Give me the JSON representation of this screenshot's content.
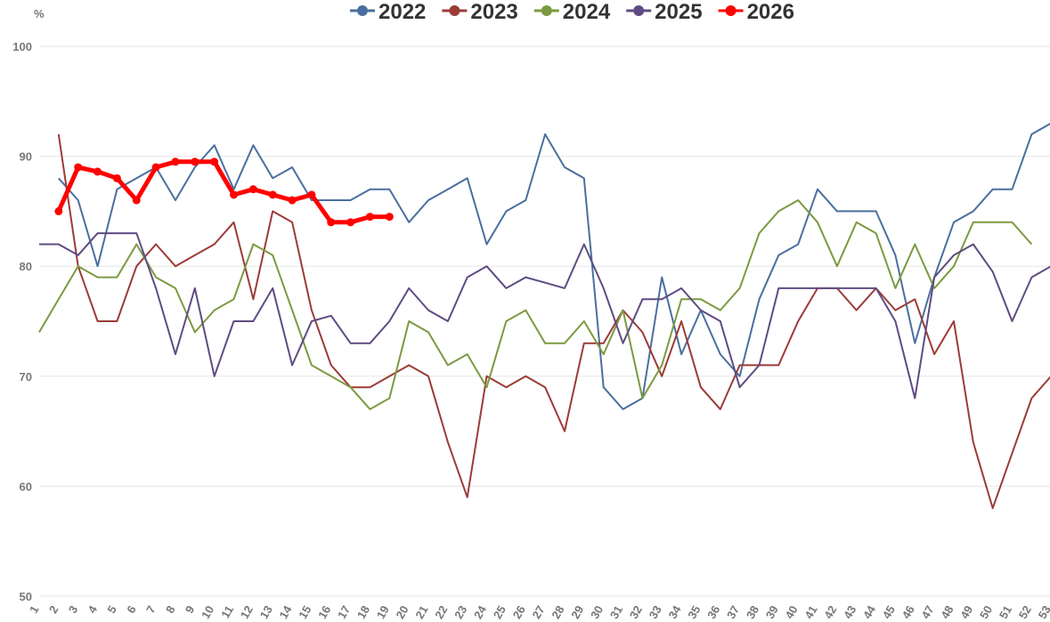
{
  "chart_data": {
    "type": "line",
    "y_unit": "%",
    "categories": [
      "1",
      "2",
      "3",
      "4",
      "5",
      "6",
      "7",
      "8",
      "9",
      "10",
      "11",
      "12",
      "13",
      "14",
      "15",
      "16",
      "17",
      "18",
      "19",
      "20",
      "21",
      "22",
      "23",
      "24",
      "25",
      "26",
      "27",
      "28",
      "29",
      "30",
      "31",
      "32",
      "33",
      "34",
      "35",
      "36",
      "37",
      "38",
      "39",
      "40",
      "41",
      "42",
      "43",
      "44",
      "45",
      "46",
      "47",
      "48",
      "49",
      "50",
      "51",
      "52",
      "53"
    ],
    "ylim": [
      50,
      100
    ],
    "yticks": [
      50,
      60,
      70,
      80,
      90,
      100
    ],
    "grid": true,
    "legend": "top",
    "series": [
      {
        "name": "2022",
        "color": "#4a6f9e",
        "values": [
          null,
          88,
          86,
          80,
          87,
          88,
          89,
          86,
          89,
          91,
          87,
          91,
          88,
          89,
          86,
          86,
          86,
          87,
          87,
          84,
          86,
          87,
          88,
          82,
          85,
          86,
          92,
          89,
          88,
          69,
          67,
          68,
          79,
          72,
          76,
          72,
          70,
          77,
          81,
          82,
          87,
          85,
          85,
          85,
          81,
          73,
          79,
          84,
          85,
          87,
          87,
          92,
          93
        ]
      },
      {
        "name": "2023",
        "color": "#9c3b37",
        "values": [
          null,
          92,
          80,
          75,
          75,
          80,
          82,
          80,
          81,
          82,
          84,
          77,
          85,
          84,
          76,
          71,
          69,
          69,
          70,
          71,
          70,
          64,
          59,
          70,
          69,
          70,
          69,
          65,
          73,
          73,
          76,
          74,
          70,
          75,
          69,
          67,
          71,
          71,
          71,
          75,
          78,
          78,
          76,
          78,
          76,
          77,
          72,
          75,
          64,
          58,
          63,
          68,
          70
        ]
      },
      {
        "name": "2024",
        "color": "#7b9a40",
        "values": [
          74,
          77,
          80,
          79,
          79,
          82,
          79,
          78,
          74,
          76,
          77,
          82,
          81,
          76,
          71,
          70,
          69,
          67,
          68,
          75,
          74,
          71,
          72,
          69,
          75,
          76,
          73,
          73,
          75,
          72,
          76,
          68,
          71,
          77,
          77,
          76,
          78,
          83,
          85,
          86,
          84,
          80,
          84,
          83,
          78,
          82,
          78,
          80,
          84,
          84,
          84,
          82,
          null
        ]
      },
      {
        "name": "2025",
        "color": "#5f4b82",
        "values": [
          82,
          82,
          81,
          83,
          83,
          83,
          78,
          72,
          78,
          70,
          75,
          75,
          78,
          71,
          75,
          75.5,
          73,
          73,
          75,
          78,
          76,
          75,
          79,
          80,
          78,
          79,
          78.5,
          78,
          82,
          78,
          73,
          77,
          77,
          78,
          76,
          75,
          69,
          71,
          78,
          78,
          78,
          78,
          78,
          78,
          75,
          68,
          79,
          81,
          82,
          79.5,
          75,
          79,
          80
        ]
      },
      {
        "name": "2026",
        "color": "#ff0000",
        "marker": true,
        "values": [
          null,
          85,
          89,
          88.6,
          88,
          86,
          89,
          89.5,
          89.5,
          89.5,
          86.5,
          87,
          86.5,
          86,
          86.5,
          84,
          84,
          84.5,
          84.5,
          null,
          null,
          null,
          null,
          null,
          null,
          null,
          null,
          null,
          null,
          null,
          null,
          null,
          null,
          null,
          null,
          null,
          null,
          null,
          null,
          null,
          null,
          null,
          null,
          null,
          null,
          null,
          null,
          null,
          null,
          null,
          null,
          null,
          null
        ]
      }
    ]
  }
}
